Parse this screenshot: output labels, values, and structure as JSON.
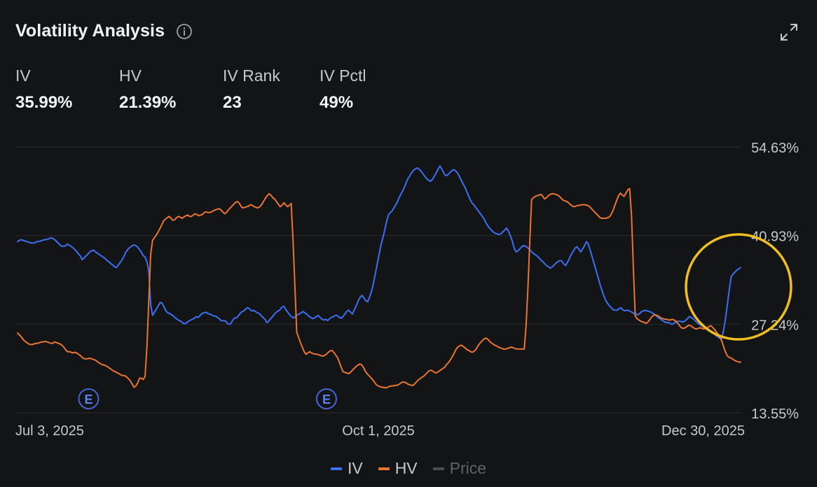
{
  "header": {
    "title": "Volatility Analysis",
    "info_icon": "info-circle-icon",
    "expand_icon": "expand-arrows-icon"
  },
  "stats": [
    {
      "label": "IV",
      "value": "35.99%"
    },
    {
      "label": "HV",
      "value": "21.39%"
    },
    {
      "label": "IV Rank",
      "value": "23"
    },
    {
      "label": "IV Pctl",
      "value": "49%"
    }
  ],
  "legend": [
    {
      "label": "IV",
      "color": "#3d6ff5"
    },
    {
      "label": "HV",
      "color": "#ea7431"
    },
    {
      "label": "Price",
      "color": "#4a4d52",
      "disabled": true
    }
  ],
  "chart_data": {
    "type": "line",
    "x_tick_labels": [
      "Jul 3, 2025",
      "Oct 1, 2025",
      "Dec 30, 2025"
    ],
    "y_tick_labels": [
      "54.63%",
      "40.93%",
      "27.24%",
      "13.55%"
    ],
    "ylim": [
      13.55,
      54.63
    ],
    "grid": true,
    "earnings_marker_label": "E",
    "earnings_marker_indices": [
      37,
      162
    ],
    "highlight_color": "#f0be1e",
    "colors": {
      "iv": "#3d6ff5",
      "hv": "#ea7431",
      "grid": "#2a2c30",
      "axis_text": "#c5c8cc"
    },
    "series": [
      {
        "name": "IV",
        "values": [
          40.0,
          40.2,
          40.3,
          40.2,
          40.1,
          40.0,
          39.9,
          39.8,
          39.8,
          39.8,
          40.0,
          40.0,
          40.1,
          40.2,
          40.3,
          40.3,
          40.4,
          40.5,
          40.6,
          40.4,
          40.2,
          39.9,
          39.6,
          39.3,
          39.3,
          39.3,
          39.6,
          39.5,
          39.3,
          39.1,
          38.8,
          38.5,
          38.1,
          37.8,
          37.2,
          37.5,
          37.8,
          38.1,
          38.4,
          38.6,
          38.7,
          38.4,
          38.2,
          38.0,
          37.8,
          37.6,
          37.4,
          37.1,
          36.9,
          36.6,
          36.4,
          36.1,
          36.0,
          36.4,
          36.8,
          37.2,
          37.8,
          38.4,
          38.8,
          39.1,
          39.3,
          39.5,
          39.4,
          39.2,
          38.8,
          38.4,
          37.9,
          37.6,
          36.9,
          35.4,
          30.2,
          28.6,
          29.1,
          29.6,
          30.1,
          30.6,
          30.5,
          29.9,
          29.3,
          29.0,
          28.9,
          28.7,
          28.5,
          28.2,
          28.0,
          27.8,
          27.7,
          27.4,
          27.3,
          27.5,
          27.7,
          27.9,
          28.0,
          28.2,
          28.4,
          28.3,
          28.6,
          28.9,
          29.0,
          29.1,
          28.9,
          28.8,
          28.7,
          28.5,
          28.5,
          28.3,
          28.1,
          27.8,
          27.8,
          27.8,
          27.5,
          27.2,
          27.3,
          27.8,
          28.2,
          28.2,
          28.5,
          28.9,
          29.2,
          29.3,
          29.6,
          29.8,
          29.6,
          29.3,
          29.4,
          29.2,
          29.0,
          28.9,
          28.6,
          28.3,
          28.0,
          27.5,
          27.7,
          28.1,
          28.4,
          28.8,
          29.1,
          29.3,
          29.5,
          29.9,
          30.0,
          29.5,
          29.1,
          28.7,
          28.4,
          28.2,
          28.4,
          28.7,
          28.8,
          29.0,
          29.2,
          29.0,
          28.8,
          28.5,
          28.3,
          28.1,
          28.2,
          28.4,
          28.6,
          28.3,
          28.0,
          27.9,
          28.0,
          27.8,
          28.1,
          28.3,
          28.4,
          28.6,
          28.6,
          28.3,
          28.2,
          28.4,
          28.8,
          29.2,
          29.4,
          29.1,
          28.8,
          29.5,
          30.1,
          30.8,
          31.4,
          31.7,
          31.3,
          30.9,
          30.7,
          31.4,
          32.3,
          33.5,
          35.0,
          36.5,
          38.0,
          39.5,
          40.6,
          41.8,
          43.2,
          44.2,
          44.5,
          44.8,
          45.3,
          45.8,
          46.4,
          47.1,
          47.6,
          48.2,
          48.9,
          49.6,
          50.1,
          50.6,
          51.0,
          51.2,
          51.4,
          51.2,
          50.9,
          50.5,
          50.1,
          49.7,
          49.5,
          49.3,
          49.6,
          50.1,
          50.6,
          51.2,
          51.7,
          51.2,
          50.6,
          50.2,
          50.3,
          50.6,
          50.9,
          51.1,
          51.0,
          50.7,
          50.2,
          49.6,
          49.0,
          48.5,
          47.8,
          47.1,
          46.4,
          45.9,
          45.6,
          45.2,
          44.8,
          44.4,
          44.0,
          43.6,
          43.0,
          42.5,
          42.1,
          41.8,
          41.5,
          41.3,
          41.2,
          41.1,
          41.2,
          41.5,
          41.8,
          42.1,
          41.6,
          40.9,
          40.1,
          39.0,
          38.4,
          38.6,
          38.9,
          39.2,
          39.4,
          39.3,
          39.1,
          38.8,
          38.5,
          38.2,
          38.0,
          37.8,
          37.5,
          37.2,
          36.9,
          36.6,
          36.3,
          36.1,
          35.9,
          36.1,
          36.4,
          36.7,
          36.9,
          37.1,
          37.0,
          36.6,
          36.3,
          36.8,
          37.4,
          38.0,
          38.5,
          39.0,
          39.2,
          38.8,
          38.4,
          38.9,
          39.4,
          40.0,
          39.6,
          38.6,
          37.6,
          36.6,
          35.6,
          34.6,
          33.5,
          32.6,
          31.7,
          31.0,
          30.5,
          30.1,
          29.8,
          29.5,
          29.4,
          29.4,
          29.6,
          29.8,
          29.5,
          29.3,
          29.4,
          29.4,
          29.2,
          29.1,
          28.9,
          28.8,
          28.7,
          28.9,
          29.2,
          29.3,
          29.4,
          29.3,
          29.2,
          29.1,
          28.9,
          28.7,
          28.4,
          28.2,
          28.0,
          27.8,
          27.6,
          27.5,
          27.5,
          27.4,
          27.2,
          27.4,
          27.6,
          27.7,
          27.7,
          27.6,
          27.6,
          27.8,
          28.1,
          28.4,
          28.3,
          28.1,
          27.8,
          27.5,
          27.3,
          27.1,
          26.9,
          26.7,
          26.5,
          26.3,
          26.1,
          25.9,
          25.8,
          25.5,
          25.3,
          25.1,
          24.9,
          26.3,
          28.0,
          30.2,
          32.5,
          34.5,
          35.0,
          35.3,
          35.6,
          35.8,
          35.99
        ]
      },
      {
        "name": "HV",
        "values": [
          25.9,
          25.6,
          25.3,
          24.9,
          24.6,
          24.4,
          24.2,
          24.1,
          24.1,
          24.2,
          24.3,
          24.3,
          24.4,
          24.5,
          24.5,
          24.6,
          24.5,
          24.4,
          24.3,
          24.3,
          24.5,
          24.4,
          24.3,
          24.2,
          24.0,
          23.7,
          23.3,
          23.0,
          23.0,
          22.9,
          22.8,
          22.9,
          22.8,
          22.6,
          22.4,
          22.1,
          21.9,
          21.9,
          21.9,
          22.0,
          21.9,
          21.8,
          21.7,
          21.5,
          21.3,
          21.1,
          21.0,
          20.9,
          20.8,
          20.6,
          20.4,
          20.2,
          20.0,
          19.9,
          19.7,
          19.6,
          19.4,
          19.3,
          19.3,
          19.1,
          18.8,
          18.5,
          18.0,
          17.5,
          17.7,
          18.2,
          18.9,
          18.9,
          18.7,
          19.2,
          24.0,
          31.0,
          38.0,
          40.2,
          40.6,
          41.0,
          41.5,
          42.0,
          42.6,
          43.2,
          43.5,
          43.7,
          43.9,
          43.6,
          43.3,
          43.4,
          43.7,
          43.9,
          43.8,
          43.6,
          43.8,
          44.0,
          44.1,
          43.9,
          43.9,
          44.1,
          44.3,
          44.2,
          44.0,
          44.1,
          44.2,
          44.5,
          44.6,
          44.5,
          44.5,
          44.6,
          44.8,
          44.9,
          45.0,
          45.1,
          44.9,
          44.6,
          44.3,
          44.5,
          44.9,
          45.2,
          45.5,
          45.8,
          46.1,
          46.2,
          45.9,
          45.4,
          45.2,
          45.3,
          45.4,
          45.5,
          45.7,
          45.6,
          45.4,
          45.3,
          45.2,
          45.4,
          45.7,
          46.2,
          46.7,
          47.1,
          47.4,
          47.2,
          46.8,
          46.6,
          46.2,
          45.8,
          45.4,
          45.6,
          46.0,
          45.7,
          45.4,
          45.6,
          45.9,
          40.0,
          33.0,
          26.0,
          25.2,
          24.4,
          23.7,
          23.0,
          22.6,
          22.8,
          23.0,
          22.8,
          22.7,
          22.6,
          22.6,
          22.5,
          22.4,
          22.3,
          22.4,
          22.6,
          22.9,
          23.1,
          23.2,
          22.9,
          22.5,
          22.1,
          21.4,
          20.6,
          19.9,
          19.8,
          19.7,
          19.6,
          19.8,
          20.1,
          20.4,
          20.7,
          20.9,
          21.1,
          21.0,
          20.6,
          20.0,
          19.6,
          19.3,
          19.0,
          18.7,
          18.3,
          17.9,
          17.7,
          17.6,
          17.5,
          17.5,
          17.4,
          17.5,
          17.6,
          17.7,
          17.7,
          17.8,
          17.8,
          17.9,
          18.1,
          18.3,
          18.3,
          18.2,
          18.0,
          17.9,
          17.8,
          17.8,
          18.1,
          18.4,
          18.7,
          18.9,
          19.1,
          19.3,
          19.6,
          19.9,
          20.1,
          20.1,
          19.9,
          19.7,
          19.8,
          20.0,
          20.2,
          20.4,
          20.6,
          21.0,
          21.3,
          21.7,
          22.2,
          22.7,
          23.3,
          23.7,
          23.9,
          24.0,
          23.8,
          23.6,
          23.3,
          23.2,
          23.0,
          22.9,
          23.1,
          23.4,
          23.9,
          24.3,
          24.6,
          24.9,
          25.1,
          25.0,
          24.7,
          24.4,
          24.2,
          24.0,
          23.9,
          23.7,
          23.6,
          23.5,
          23.4,
          23.4,
          23.5,
          23.6,
          23.7,
          23.6,
          23.5,
          23.4,
          23.4,
          23.4,
          23.4,
          23.4,
          27.0,
          33.0,
          40.0,
          46.5,
          46.8,
          47.0,
          47.1,
          47.2,
          47.3,
          47.0,
          46.6,
          46.8,
          47.1,
          47.3,
          47.4,
          47.4,
          47.3,
          47.2,
          47.0,
          46.7,
          46.4,
          46.3,
          46.2,
          46.0,
          45.7,
          45.5,
          45.4,
          45.5,
          45.6,
          45.6,
          45.7,
          45.7,
          45.7,
          45.6,
          45.5,
          45.2,
          44.9,
          44.6,
          44.3,
          44.0,
          43.7,
          43.6,
          43.6,
          43.6,
          43.7,
          43.8,
          44.2,
          44.8,
          45.6,
          46.4,
          47.1,
          47.5,
          47.2,
          47.0,
          47.5,
          48.0,
          48.2,
          44.0,
          36.0,
          28.5,
          28.1,
          27.9,
          27.7,
          27.6,
          27.5,
          27.4,
          27.6,
          28.0,
          28.4,
          28.6,
          28.7,
          28.6,
          28.4,
          28.2,
          28.1,
          28.0,
          28.0,
          27.9,
          27.9,
          28.0,
          27.9,
          27.7,
          27.4,
          27.0,
          26.7,
          26.6,
          26.7,
          26.9,
          27.1,
          27.0,
          26.8,
          26.6,
          26.5,
          26.6,
          26.7,
          26.6,
          26.5,
          26.6,
          26.7,
          26.9,
          27.0,
          26.7,
          26.4,
          26.0,
          25.6,
          25.1,
          24.5,
          23.6,
          22.8,
          22.3,
          22.1,
          22.0,
          21.8,
          21.6,
          21.5,
          21.4,
          21.39
        ]
      }
    ]
  }
}
